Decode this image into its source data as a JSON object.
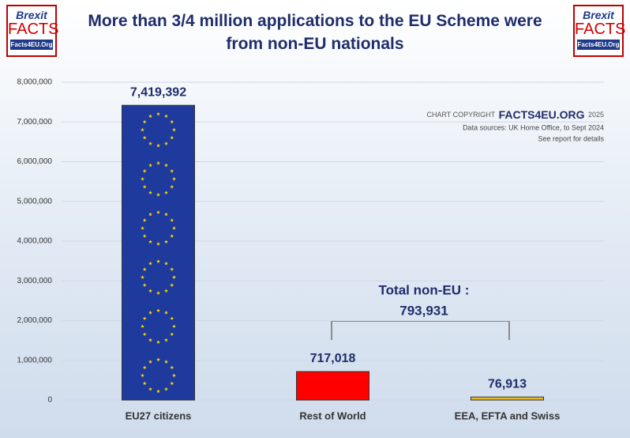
{
  "chart_data": {
    "type": "bar",
    "title": "More than 3/4 million applications to the EU Scheme were from non-EU nationals",
    "categories": [
      "EU27 citizens",
      "Rest of World",
      "EEA, EFTA and Swiss"
    ],
    "values": [
      7419392,
      717018,
      76913
    ],
    "value_labels": [
      "7,419,392",
      "717,018",
      "76,913"
    ],
    "colors": [
      "#1e3a9c",
      "#ff0000",
      "#e8b923"
    ],
    "ylim": [
      0,
      8000000
    ],
    "yticks": [
      0,
      {
        "value": 1000000,
        "label": "1,000,000"
      },
      {
        "value": 2000000,
        "label": "2,000,000"
      },
      {
        "value": 3000000,
        "label": "3,000,000"
      },
      {
        "value": 4000000,
        "label": "4,000,000"
      },
      {
        "value": 5000000,
        "label": "5,000,000"
      },
      {
        "value": 6000000,
        "label": "6,000,000"
      },
      {
        "value": 7000000,
        "label": "7,000,000"
      },
      {
        "value": 8000000,
        "label": "8,000,000"
      }
    ],
    "grid": true,
    "annotation": {
      "label": "Total non-EU :",
      "total": "793,931"
    },
    "copyright": {
      "prefix": "CHART COPYRIGHT",
      "brand": "FACTS4EU.ORG",
      "year": "2025",
      "sources": "Data sources: UK Home Office, to Sept 2024",
      "note": "See report for details"
    }
  },
  "logo": {
    "top": "Brexit",
    "middle": "FACTS",
    "bottom": "Facts4EU.Org"
  }
}
